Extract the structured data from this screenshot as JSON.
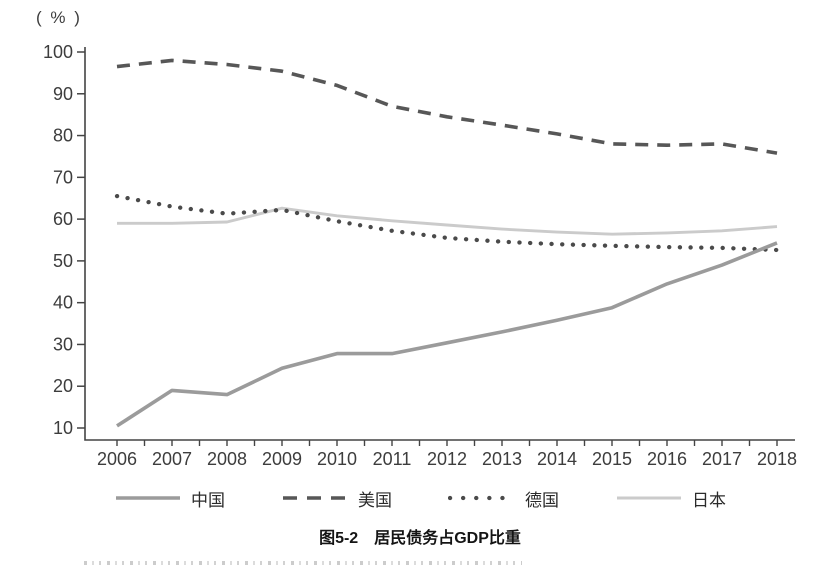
{
  "y_axis_unit_label": "( % )",
  "caption": {
    "prefix": "图5-2",
    "text": "居民债务占GDP比重"
  },
  "chart_data": {
    "type": "line",
    "title": "图5-2 居民债务占GDP比重",
    "ylabel": "( % )",
    "xlabel": "",
    "ylim": [
      10,
      100
    ],
    "ytick_step": 10,
    "grid": false,
    "legend_position": "bottom",
    "x": [
      2006,
      2007,
      2008,
      2009,
      2010,
      2011,
      2012,
      2013,
      2014,
      2015,
      2016,
      2017,
      2018
    ],
    "series": [
      {
        "key": "china",
        "name": "中国",
        "style": "solid",
        "color": "#9b9b9b",
        "width": 3.6,
        "values": [
          10.5,
          19.0,
          18.0,
          24.3,
          27.8,
          27.8,
          30.4,
          33.0,
          35.8,
          38.8,
          44.5,
          49.0,
          54.3
        ]
      },
      {
        "key": "usa",
        "name": "美国",
        "style": "dashed",
        "color": "#575757",
        "width": 3.6,
        "values": [
          96.5,
          98.0,
          97.0,
          95.4,
          92.0,
          87.0,
          84.5,
          82.5,
          80.4,
          78.0,
          77.7,
          78.0,
          75.8
        ]
      },
      {
        "key": "germany",
        "name": "德国",
        "style": "dotted",
        "color": "#4a4a4a",
        "width": 4.3,
        "values": [
          65.5,
          63.0,
          61.3,
          62.2,
          59.5,
          57.2,
          55.5,
          54.6,
          54.0,
          53.6,
          53.3,
          53.1,
          52.6
        ]
      },
      {
        "key": "japan",
        "name": "日本",
        "style": "solid",
        "color": "#cbcbcb",
        "width": 2.9,
        "values": [
          59.0,
          59.0,
          59.3,
          62.6,
          60.8,
          59.6,
          58.6,
          57.6,
          56.9,
          56.4,
          56.7,
          57.2,
          58.2
        ]
      }
    ]
  }
}
